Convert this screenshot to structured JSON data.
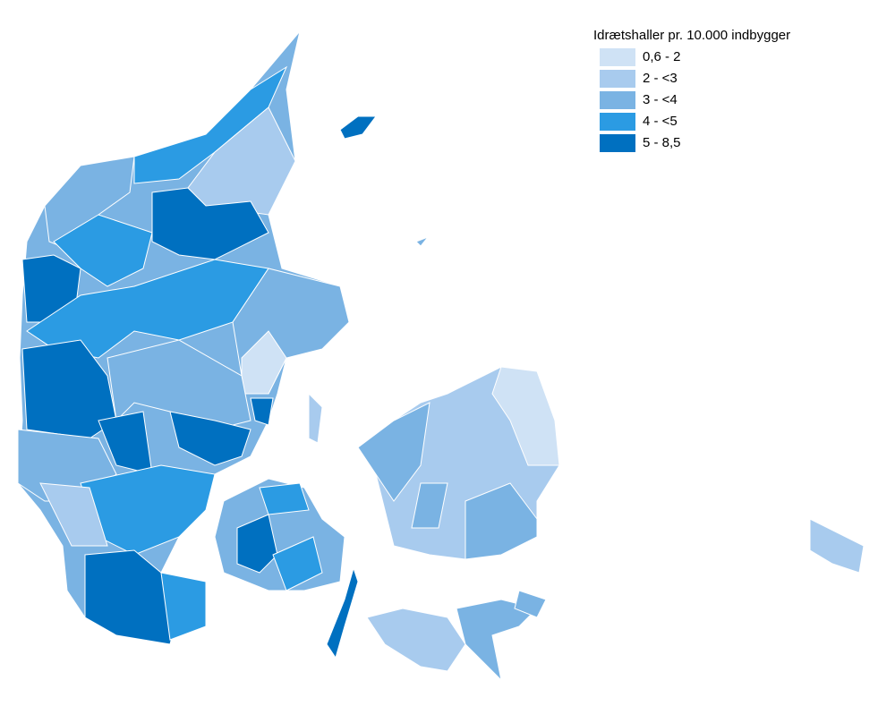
{
  "legend": {
    "title": "Idrætshaller pr. 10.000 indbygger",
    "items": [
      {
        "label": "0,6 - 2",
        "color": "#cfe2f5"
      },
      {
        "label": "2 - <3",
        "color": "#a8cbee"
      },
      {
        "label": "3 - <4",
        "color": "#7ab3e3"
      },
      {
        "label": "4 - <5",
        "color": "#2b9be3"
      },
      {
        "label": "5 - 8,5",
        "color": "#0070c0"
      }
    ]
  }
}
